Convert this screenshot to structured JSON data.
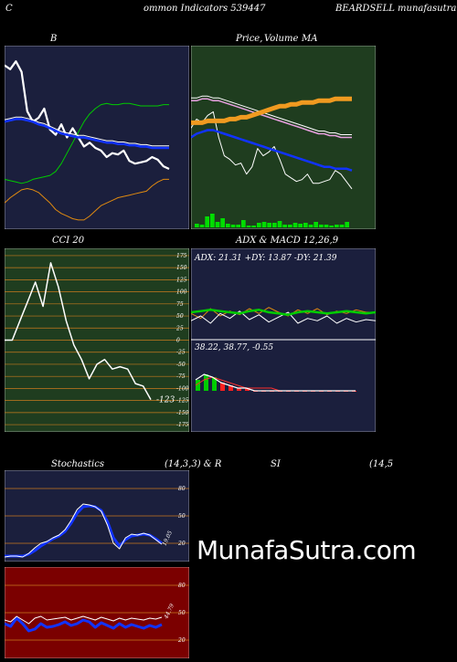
{
  "header": {
    "left": "C",
    "center": "ommon  Indicators 539447",
    "right": "BEARDSELL  munafasutra.in"
  },
  "watermark": "MunafaSutra.com",
  "panels": {
    "bollinger": {
      "title": "B"
    },
    "price": {
      "title_a": "Price,",
      "title_b": "Volume",
      "title_c": "MA"
    },
    "cci": {
      "title": "CCI 20",
      "value_label": "-123"
    },
    "adx": {
      "title": "ADX  & MACD 12,26,9",
      "adx_readout": "ADX: 21.31  +DY: 13.87  -DY: 21.39",
      "macd_readout": "38.22,  38.77,  -0.55"
    },
    "stoch": {
      "title_a": "Stochastics",
      "title_b": "(14,3,3) & R",
      "title_c": "SI",
      "title_d": "(14,5",
      "value_label": "19.05"
    },
    "rsi": {
      "value_label": "44.79"
    }
  },
  "colors": {
    "navy_bg": "#1b1f3d",
    "green_bg": "#1f3d1f",
    "red_bg": "#7b0000",
    "grid": "#c87a1e",
    "white_line": "#ffffff",
    "blue_line": "#1133ff",
    "green_line": "#00cc00",
    "orange_line": "#e08a10"
  },
  "chart_data": [
    {
      "type": "line",
      "name": "bollinger",
      "series": [
        {
          "role": "price",
          "values": [
            95,
            92,
            98,
            90,
            60,
            52,
            55,
            62,
            46,
            42,
            50,
            40,
            47,
            40,
            33,
            36,
            32,
            30,
            25,
            28,
            27,
            30,
            22,
            20,
            21,
            22,
            25,
            23,
            18,
            16
          ]
        },
        {
          "role": "upper",
          "values": [
            8,
            7,
            6,
            5,
            6,
            8,
            9,
            10,
            11,
            14,
            20,
            28,
            36,
            44,
            52,
            58,
            62,
            65,
            66,
            65,
            65,
            66,
            66,
            65,
            64,
            64,
            64,
            64,
            65,
            65
          ]
        },
        {
          "role": "middle",
          "values": [
            52,
            53,
            54,
            54,
            53,
            52,
            50,
            49,
            47,
            45,
            43,
            42,
            41,
            40,
            40,
            39,
            38,
            37,
            36,
            36,
            35,
            35,
            34,
            34,
            33,
            33,
            32,
            32,
            32,
            32
          ]
        },
        {
          "role": "lower",
          "values": [
            -10,
            -6,
            -3,
            0,
            1,
            0,
            -2,
            -6,
            -10,
            -15,
            -18,
            -20,
            -22,
            -23,
            -23,
            -20,
            -16,
            -12,
            -10,
            -8,
            -6,
            -5,
            -4,
            -3,
            -2,
            -1,
            3,
            6,
            8,
            8
          ]
        }
      ],
      "ylim": [
        -30,
        110
      ]
    },
    {
      "type": "line",
      "name": "price_volume_ma",
      "series": [
        {
          "role": "price",
          "values": [
            55,
            60,
            58,
            62,
            64,
            50,
            40,
            38,
            35,
            36,
            30,
            34,
            44,
            40,
            42,
            45,
            38,
            30,
            28,
            26,
            27,
            30,
            25,
            25,
            26,
            27,
            32,
            30,
            26,
            22
          ]
        },
        {
          "role": "ma_a",
          "values": [
            70,
            70,
            71,
            71,
            70,
            70,
            69,
            68,
            67,
            66,
            65,
            64,
            63,
            62,
            61,
            60,
            59,
            58,
            57,
            56,
            55,
            54,
            53,
            52,
            52,
            51,
            51,
            50,
            50,
            50
          ]
        },
        {
          "role": "ma_b",
          "values": [
            50,
            52,
            53,
            54,
            54,
            53,
            52,
            51,
            50,
            49,
            48,
            47,
            46,
            45,
            44,
            43,
            42,
            41,
            40,
            39,
            38,
            37,
            36,
            35,
            34,
            34,
            33,
            33,
            33,
            32
          ]
        },
        {
          "role": "ma_orange",
          "values": [
            58,
            58,
            58,
            59,
            59,
            59,
            59,
            60,
            60,
            61,
            61,
            62,
            63,
            64,
            65,
            66,
            67,
            67,
            68,
            68,
            69,
            69,
            69,
            70,
            70,
            70,
            71,
            71,
            71,
            71
          ]
        }
      ],
      "volume": [
        4,
        3,
        12,
        15,
        6,
        10,
        4,
        3,
        3,
        8,
        2,
        2,
        5,
        6,
        5,
        5,
        7,
        3,
        3,
        5,
        4,
        5,
        3,
        6,
        3,
        3,
        2,
        3,
        3,
        6
      ],
      "ylim": [
        0,
        100
      ]
    },
    {
      "type": "line",
      "name": "cci",
      "ticks": [
        175,
        150,
        125,
        100,
        75,
        50,
        25,
        0,
        -25,
        -50,
        -75,
        -100,
        -125,
        -150,
        -175
      ],
      "values": [
        0,
        0,
        40,
        80,
        120,
        70,
        160,
        110,
        40,
        -10,
        -40,
        -80,
        -50,
        -40,
        -60,
        -55,
        -60,
        -90,
        -95,
        -123
      ],
      "ylim": [
        -190,
        190
      ]
    },
    {
      "type": "line",
      "name": "adx_macd",
      "adx": {
        "adx": [
          21,
          22,
          23,
          22,
          21,
          20,
          22,
          23,
          21,
          20,
          19,
          21,
          22,
          21,
          20,
          21,
          22,
          21,
          20,
          21
        ],
        "plus_di": [
          14,
          18,
          12,
          20,
          16,
          22,
          15,
          19,
          13,
          17,
          21,
          12,
          16,
          14,
          18,
          12,
          16,
          13,
          15,
          14
        ],
        "minus_di": [
          20,
          16,
          24,
          18,
          22,
          19,
          24,
          20,
          25,
          21,
          18,
          23,
          20,
          24,
          19,
          22,
          20,
          23,
          21,
          21
        ],
        "ylim": [
          0,
          60
        ]
      },
      "macd": {
        "macd": [
          42,
          44,
          43,
          41,
          40,
          39,
          39,
          38,
          38,
          38,
          38,
          38,
          38,
          38,
          38,
          38,
          38,
          38,
          38,
          38
        ],
        "signal": [
          40,
          42,
          43,
          42,
          41,
          40,
          39,
          39,
          39,
          39,
          38,
          38,
          38,
          38,
          38,
          38,
          38,
          38,
          38,
          38
        ],
        "ylim": [
          30,
          50
        ]
      }
    },
    {
      "type": "line",
      "name": "stochastics",
      "ticks": [
        80,
        50,
        20
      ],
      "k": [
        5,
        6,
        6,
        5,
        9,
        15,
        20,
        22,
        26,
        29,
        35,
        45,
        57,
        63,
        62,
        60,
        55,
        40,
        20,
        14,
        26,
        30,
        29,
        31,
        29,
        24,
        19
      ],
      "d": [
        6,
        6,
        6,
        6,
        8,
        12,
        17,
        21,
        25,
        28,
        33,
        42,
        53,
        60,
        61,
        60,
        56,
        44,
        26,
        17,
        24,
        28,
        29,
        30,
        29,
        25,
        20
      ],
      "ylim": [
        0,
        100
      ]
    },
    {
      "type": "line",
      "name": "rsi",
      "ticks": [
        80,
        50,
        20
      ],
      "rsi": [
        42,
        40,
        46,
        42,
        38,
        44,
        46,
        42,
        43,
        44,
        45,
        42,
        44,
        46,
        44,
        42,
        45,
        43,
        41,
        44,
        42,
        44,
        43,
        42,
        44,
        43,
        45
      ],
      "mfi": [
        38,
        35,
        44,
        38,
        30,
        32,
        38,
        34,
        35,
        37,
        40,
        36,
        38,
        42,
        40,
        34,
        39,
        36,
        33,
        38,
        34,
        37,
        35,
        33,
        36,
        34,
        37
      ],
      "ylim": [
        0,
        100
      ]
    }
  ]
}
